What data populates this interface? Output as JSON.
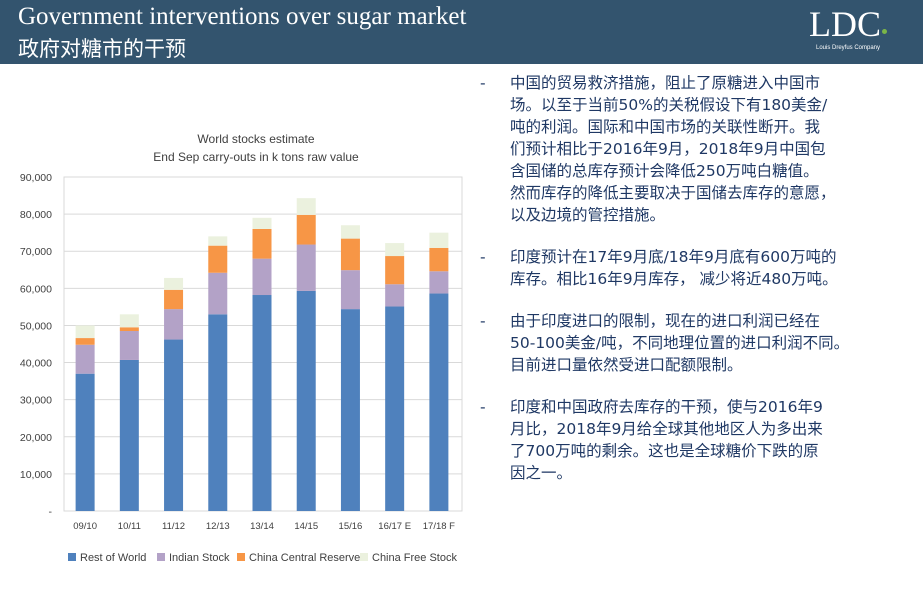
{
  "header": {
    "title_en": "Government interventions over sugar market",
    "title_cn": "政府对糖市的干预",
    "logo_text": "LDC",
    "logo_subtitle": "Louis Dreyfus Company"
  },
  "colors": {
    "header_bg": "#33546e",
    "bullet_text": "#1f3864",
    "rest_of_world": "#4f81bd",
    "indian_stock": "#b3a2c7",
    "china_central_reserve": "#f79646",
    "china_free_stock": "#ebf1de"
  },
  "bullets": [
    {
      "dash": "-",
      "lines": [
        "中国的贸易救济措施，阻止了原糖进入中国市",
        "场。以至于当前50%的关税假设下有180美金/",
        "吨的利润。国际和中国市场的关联性断开。我",
        "们预计相比于2016年9月，2018年9月中国包",
        "含国储的总库存预计会降低250万吨白糖值。",
        "然而库存的降低主要取决于国储去库存的意愿，",
        "以及边境的管控措施。"
      ]
    },
    {
      "dash": "-",
      "lines": [
        "印度预计在17年9月底/18年9月底有600万吨的",
        "库存。相比16年9月库存， 减少将近480万吨。"
      ]
    },
    {
      "dash": "-",
      "lines": [
        "由于印度进口的限制，现在的进口利润已经在",
        "50-100美金/吨，不同地理位置的进口利润不同。",
        "目前进口量依然受进口配额限制。"
      ]
    },
    {
      "dash": "-",
      "lines": [
        "印度和中国政府去库存的干预，使与2016年9",
        "月比，2018年9月给全球其他地区人为多出来",
        "了700万吨的剩余。这也是全球糖价下跌的原",
        "因之一。"
      ]
    }
  ],
  "chart_data": {
    "type": "bar",
    "stacked": true,
    "title": [
      "World stocks estimate",
      "End Sep carry-outs in k tons raw value"
    ],
    "categories": [
      "09/10",
      "10/11",
      "11/12",
      "12/13",
      "13/14",
      "14/15",
      "15/16",
      "16/17 E",
      "17/18 F"
    ],
    "y_tick_labels": [
      "-",
      "10,000",
      "20,000",
      "30,000",
      "40,000",
      "50,000",
      "60,000",
      "70,000",
      "80,000",
      "90,000"
    ],
    "ylim": [
      0,
      90000
    ],
    "grid": true,
    "legend_position": "bottom",
    "series": [
      {
        "name": "Rest of World",
        "color": "#4f81bd",
        "values": [
          37000,
          40700,
          46200,
          53000,
          58200,
          59300,
          54400,
          55100,
          58600
        ]
      },
      {
        "name": "Indian Stock",
        "color": "#b3a2c7",
        "values": [
          7800,
          7800,
          8200,
          11200,
          9800,
          12500,
          10500,
          6000,
          6000
        ]
      },
      {
        "name": "China Central Reserve",
        "color": "#f79646",
        "values": [
          1800,
          1000,
          5200,
          7300,
          8000,
          8000,
          8500,
          7600,
          6300
        ]
      },
      {
        "name": "China Free Stock",
        "color": "#ebf1de",
        "values": [
          3400,
          3500,
          3200,
          2500,
          3000,
          4500,
          3600,
          3500,
          4100
        ]
      }
    ]
  }
}
